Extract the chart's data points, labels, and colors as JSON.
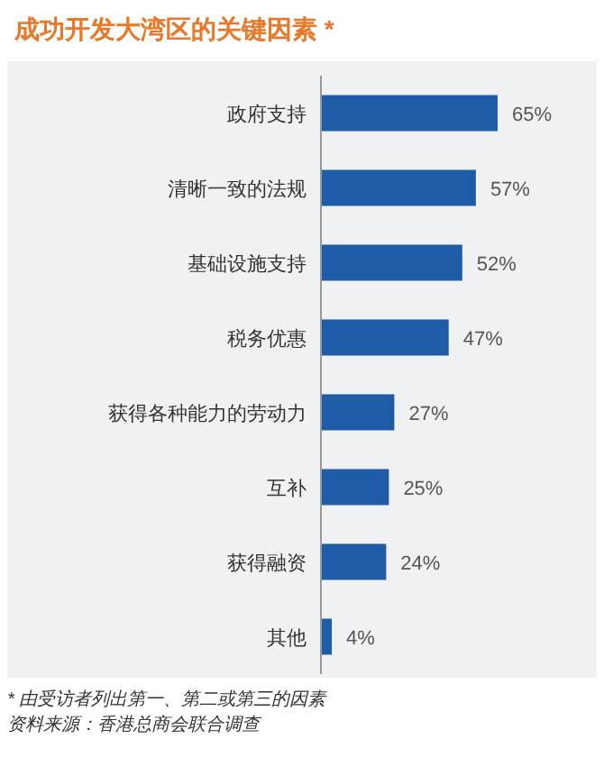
{
  "chart_data": {
    "type": "bar",
    "orientation": "horizontal",
    "title": "成功开发大湾区的关键因素 *",
    "categories": [
      "政府支持",
      "清晰一致的法规",
      "基础设施支持",
      "税务优惠",
      "获得各种能力的劳动力",
      "互补",
      "获得融资",
      "其他"
    ],
    "values": [
      65,
      57,
      52,
      47,
      27,
      25,
      24,
      4
    ],
    "value_labels": [
      "65%",
      "57%",
      "52%",
      "47%",
      "27%",
      "25%",
      "24%",
      "4%"
    ],
    "color": "#1f5ca8",
    "relative": false,
    "annotations": [
      "* 由受访者列出第一、第二或第三的因素",
      "资料来源：香港总商会联合调查"
    ]
  }
}
